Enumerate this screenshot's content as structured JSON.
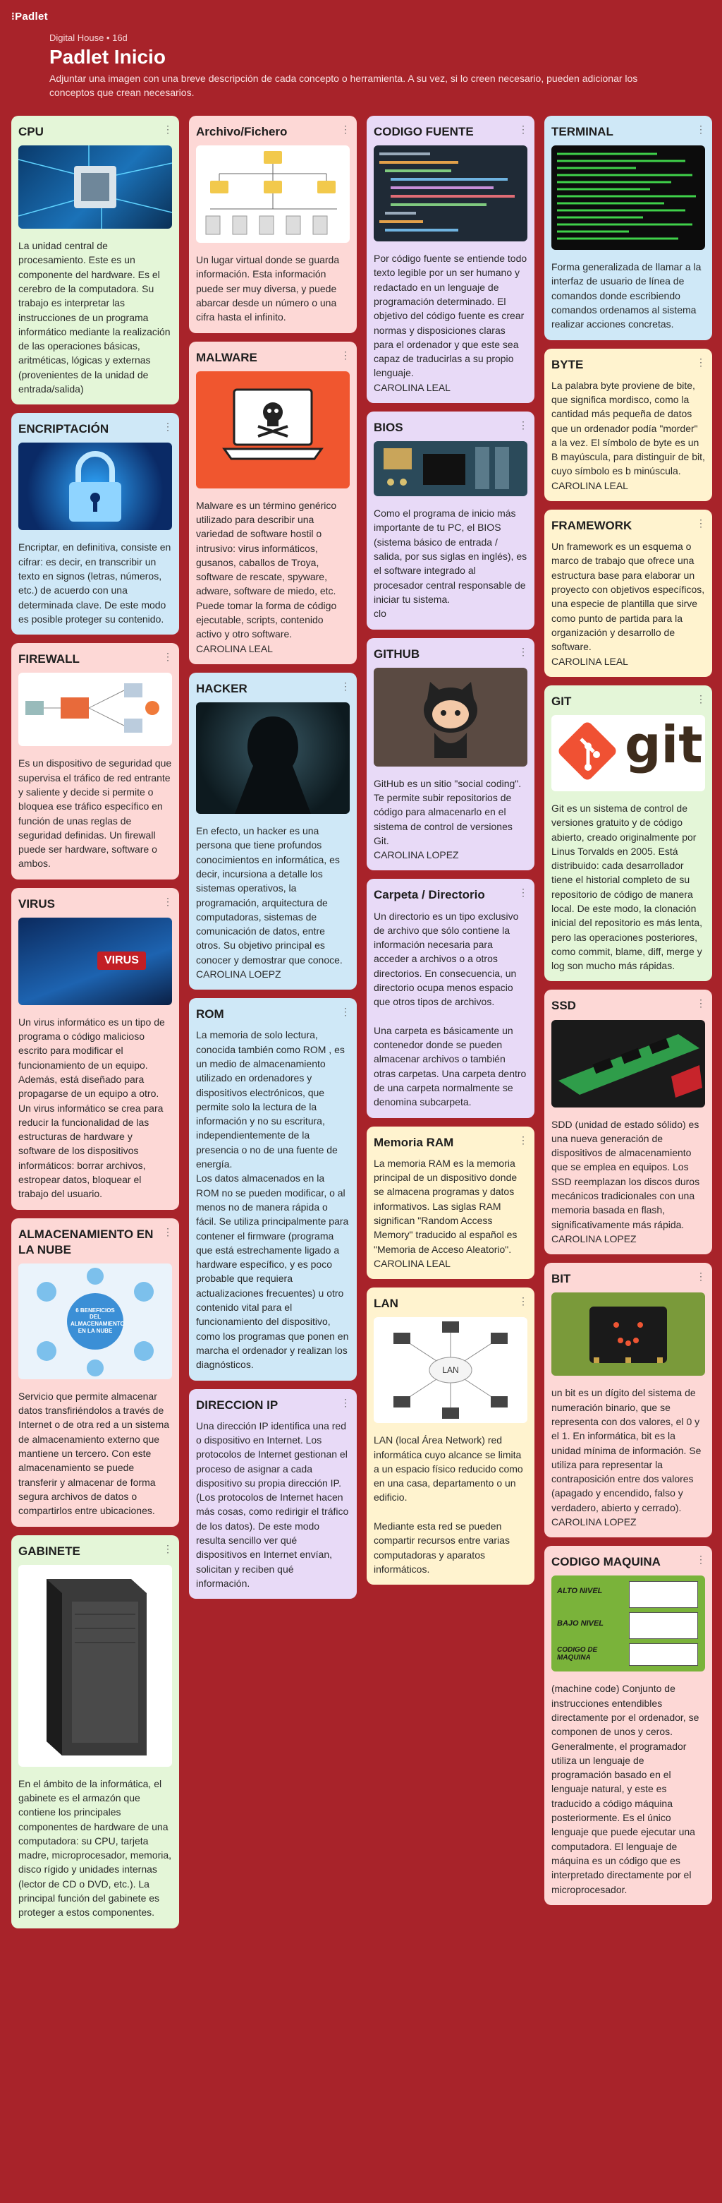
{
  "app": {
    "brand": "⁝Padlet"
  },
  "header": {
    "breadcrumb": "Digital House • 16d",
    "title": "Padlet Inicio",
    "description": "Adjuntar una imagen con una breve descripción de cada concepto o herramienta. A su vez, si lo creen necesario, pueden adicionar los conceptos que crean necesarios."
  },
  "cards": {
    "cpu": {
      "title": "CPU",
      "text": "La unidad central de procesamiento. Este es un componente del hardware. Es el cerebro de la computadora. Su trabajo es interpretar las instrucciones de un programa informático mediante la realización de las operaciones básicas, aritméticas, lógicas y externas (provenientes de la unidad de entrada/salida)"
    },
    "encriptacion": {
      "title": "ENCRIPTACIÓN",
      "text": "Encriptar, en definitiva, consiste en cifrar: es decir, en transcribir un texto en signos (letras, números, etc.) de acuerdo con una determinada clave. De este modo es posible proteger su contenido."
    },
    "firewall": {
      "title": "FIREWALL",
      "text": "Es un dispositivo de seguridad que supervisa el tráfico de red entrante y saliente y decide si permite o bloquea ese tráfico específico en función de unas reglas de seguridad definidas. Un firewall puede ser hardware, software o ambos."
    },
    "virus": {
      "title": "VIRUS",
      "img_text": "VIRUS",
      "text": "Un virus informático es un tipo de programa o código malicioso escrito para modificar el funcionamiento de un equipo. Además, está diseñado para propagarse de un equipo a otro.\nUn virus informático se crea para reducir la funcionalidad de las estructuras de hardware y software de los dispositivos informáticos: borrar archivos, estropear datos, bloquear el trabajo del usuario."
    },
    "nube": {
      "title": "ALMACENAMIENTO EN LA NUBE",
      "img_center": "6 BENEFICIOS DEL ALMACENAMIENTO EN LA NUBE",
      "text": "Servicio que permite almacenar datos transfiriéndolos a través de Internet o de otra red a un sistema de almacenamiento externo que mantiene un tercero.  Con este almacenamiento se puede transferir y almacenar de forma segura archivos de datos o compartirlos entre ubicaciones."
    },
    "gabinete": {
      "title": "GABINETE",
      "text": "En el ámbito de la informática, el gabinete es el armazón que contiene los principales componentes de hardware de una computadora: su CPU, tarjeta madre, microprocesador, memoria, disco rígido y unidades internas (lector de CD o DVD, etc.). La principal función del gabinete es proteger a estos componentes."
    },
    "archivo": {
      "title": "Archivo/Fichero",
      "text": "Un lugar virtual donde se guarda información. Esta información puede ser muy diversa, y puede abarcar desde un número o una cifra hasta el infinito."
    },
    "malware": {
      "title": "MALWARE",
      "text": "Malware es un término genérico utilizado para describir una variedad de software hostil o intrusivo: virus informáticos, gusanos, caballos de Troya, software de rescate, spyware, adware, software de miedo, etc. Puede tomar la forma de código ejecutable, scripts, contenido activo y otro software.\nCAROLINA LEAL"
    },
    "hacker": {
      "title": "HACKER",
      "text": "En efecto, un hacker es una persona que tiene profundos conocimientos en informática, es decir, incursiona a detalle los sistemas operativos, la programación, arquitectura de computadoras, sistemas de comunicación de datos, entre otros. Su objetivo principal es conocer y demostrar que conoce. CAROLINA LOEPZ"
    },
    "rom": {
      "title": "ROM",
      "text": "La memoria de solo lectura, conocida también como ROM , es un medio de almacenamiento utilizado en ordenadores y dispositivos electrónicos, que permite solo la lectura de la información y no su escritura, independientemente de la presencia o no de una fuente de energía.\nLos datos almacenados en la ROM no se pueden modificar, o al menos no de manera rápida o fácil. Se utiliza principalmente para contener el firmware (programa que está estrechamente ligado a hardware específico, y es poco probable que requiera actualizaciones frecuentes) u otro contenido vital para el funcionamiento del dispositivo, como los programas que ponen en marcha el ordenador y realizan los diagnósticos."
    },
    "ip": {
      "title": "DIRECCION IP",
      "text": "Una dirección IP identifica una red o dispositivo en Internet. Los protocolos de Internet gestionan el proceso de asignar a cada dispositivo su propia dirección IP. (Los protocolos de Internet hacen más cosas, como redirigir el tráfico de los datos). De este modo resulta sencillo ver qué dispositivos en Internet envían, solicitan y reciben qué información."
    },
    "codigo_fuente": {
      "title": "CODIGO FUENTE",
      "text": "Por código fuente se entiende todo texto legible por un ser humano y redactado en un lenguaje de programación determinado. El objetivo del código fuente es crear normas y disposiciones claras para el ordenador y que este sea capaz de traducirlas a su propio lenguaje.\nCAROLINA LEAL"
    },
    "bios": {
      "title": "BIOS",
      "text": "Como el programa de inicio más importante de tu PC, el BIOS (sistema básico de entrada / salida, por sus siglas en inglés), es el software integrado al procesador central responsable de iniciar tu sistema.\nclo"
    },
    "github": {
      "title": "GITHUB",
      "text": "GitHub es un sitio \"social coding\". Te permite subir repositorios de código para almacenarlo en el sistema de control de versiones Git.\nCAROLINA LOPEZ"
    },
    "carpeta": {
      "title": "Carpeta / Directorio",
      "text": "Un directorio es un tipo exclusivo de archivo que sólo contiene la información necesaria para acceder a archivos o a otros directorios. En consecuencia, un directorio ocupa menos espacio que otros tipos de archivos.\n\nUna carpeta es básicamente un contenedor donde se pueden almacenar archivos o también otras carpetas. Una carpeta dentro de una carpeta normalmente se denomina subcarpeta."
    },
    "ram": {
      "title": "Memoria RAM",
      "text": "La memoria RAM es la memoria principal de un dispositivo donde se almacena programas y datos informativos. Las siglas RAM significan \"Random Access Memory\" traducido al español es \"Memoria de Acceso Aleatorio\".\nCAROLINA LEAL"
    },
    "lan": {
      "title": "LAN",
      "img_center": "LAN",
      "text": "LAN (local Área Network) red informática cuyo alcance se limita a un espacio físico reducido como en una casa, departamento o un edificio.\n\nMediante esta red se pueden compartir recursos entre varias computadoras y aparatos informáticos."
    },
    "terminal": {
      "title": "TERMINAL",
      "text": "Forma generalizada de llamar a la interfaz de usuario de línea de comandos donde escribiendo comandos ordenamos al sistema realizar acciones concretas."
    },
    "byte": {
      "title": "BYTE",
      "text": "La palabra byte proviene de bite, que significa mordisco, como la cantidad más pequeña de datos que un ordenador podía \"morder\" a la vez. El símbolo de byte es un B mayúscula, para distinguir de bit, cuyo símbolo es b minúscula.\nCAROLINA LEAL"
    },
    "framework": {
      "title": "FRAMEWORK",
      "text": "Un framework es un esquema o marco de trabajo que ofrece una estructura base para elaborar un proyecto con objetivos específicos, una especie de plantilla que sirve como punto de partida para la organización y desarrollo de software.\nCAROLINA LEAL"
    },
    "git": {
      "title": "GIT",
      "img_text": "git",
      "text": "Git es un sistema de control de versiones gratuito y de código abierto, creado originalmente por Linus Torvalds en 2005. Está distribuido: cada desarrollador tiene el historial completo de su repositorio de código de manera local. De este modo, la clonación inicial del repositorio es más lenta, pero las operaciones posteriores, como commit, blame, diff, merge y log son mucho más rápidas."
    },
    "ssd": {
      "title": "SSD",
      "text": " SDD (unidad de estado sólido) es una nueva generación de dispositivos de almacenamiento que se emplea en equipos. Los SSD reemplazan los discos duros mecánicos tradicionales con una memoria basada en flash, significativamente más rápida. CAROLINA LOPEZ"
    },
    "bit": {
      "title": "BIT",
      "text": "un bit es un dígito del sistema de numeración binario, que se representa con dos valores, el 0 y el 1. En informática, bit es la unidad mínima de información. Se utiliza para representar la contraposición entre dos valores (apagado y encendido, falso y verdadero, abierto y cerrado). CAROLINA LOPEZ"
    },
    "maquina": {
      "title": "CODIGO MAQUINA",
      "img_labels": [
        "ALTO NIVEL",
        "BAJO NIVEL",
        "CODIGO DE MAQUINA"
      ],
      "text": "(machine code) Conjunto de instrucciones entendibles directamente por el ordenador, se componen de unos y ceros. Generalmente, el programador utiliza un lenguaje de programación basado en el lenguaje natural, y este es traducido a código máquina posteriormente. Es el único lenguaje que puede ejecutar una computadora. El lenguaje de máquina es un código que es interpretado directamente por el microprocesador."
    }
  },
  "icons": {
    "more": "⋮"
  }
}
